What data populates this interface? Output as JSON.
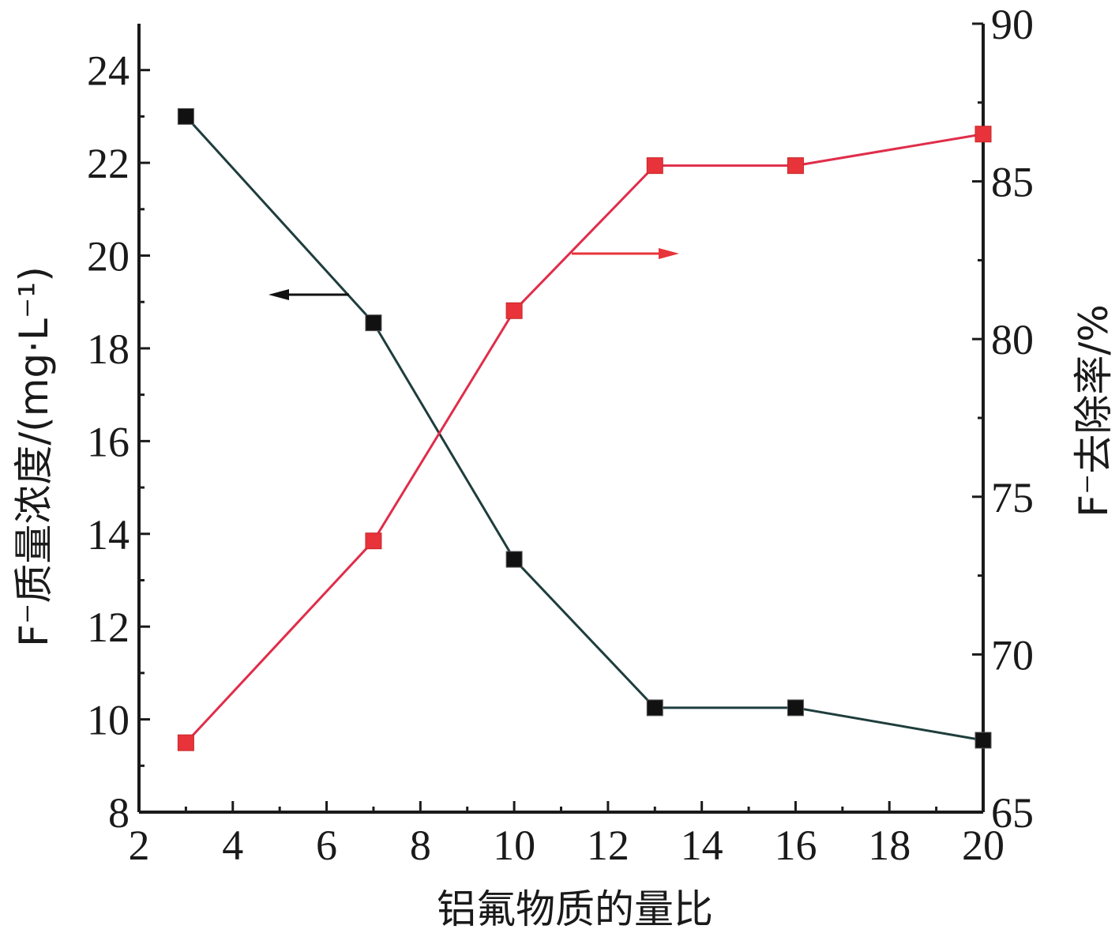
{
  "chart_data": {
    "type": "line",
    "x": [
      3,
      7,
      10,
      13,
      16,
      20
    ],
    "xlim": [
      2,
      20
    ],
    "xticks": [
      2,
      4,
      6,
      8,
      10,
      12,
      14,
      16,
      18,
      20
    ],
    "xlabel": "铝氟物质的量比",
    "series": [
      {
        "axis": "left",
        "values": [
          23.0,
          18.55,
          13.45,
          10.25,
          10.25,
          9.55
        ],
        "color": "#111111",
        "line_color": "#1f3d3d",
        "marker": "square"
      },
      {
        "axis": "right",
        "values": [
          67.2,
          73.6,
          80.9,
          85.5,
          85.5,
          86.5
        ],
        "color": "#e8333a",
        "line_color": "#e02d4a",
        "marker": "square"
      }
    ],
    "y_left": {
      "label": "F⁻质量浓度/(mg·L⁻¹)",
      "lim": [
        8,
        25
      ],
      "ticks": [
        8,
        10,
        12,
        14,
        16,
        18,
        20,
        22,
        24
      ]
    },
    "y_right": {
      "label": "F⁻去除率/%",
      "lim": [
        65,
        90
      ],
      "ticks": [
        65,
        70,
        75,
        80,
        85,
        90
      ]
    },
    "annotations": [
      {
        "kind": "arrow",
        "points_to": "left-axis",
        "color": "#111111"
      },
      {
        "kind": "arrow",
        "points_to": "right-axis",
        "color": "#e8333a"
      }
    ],
    "grid": false,
    "legend": "none"
  }
}
